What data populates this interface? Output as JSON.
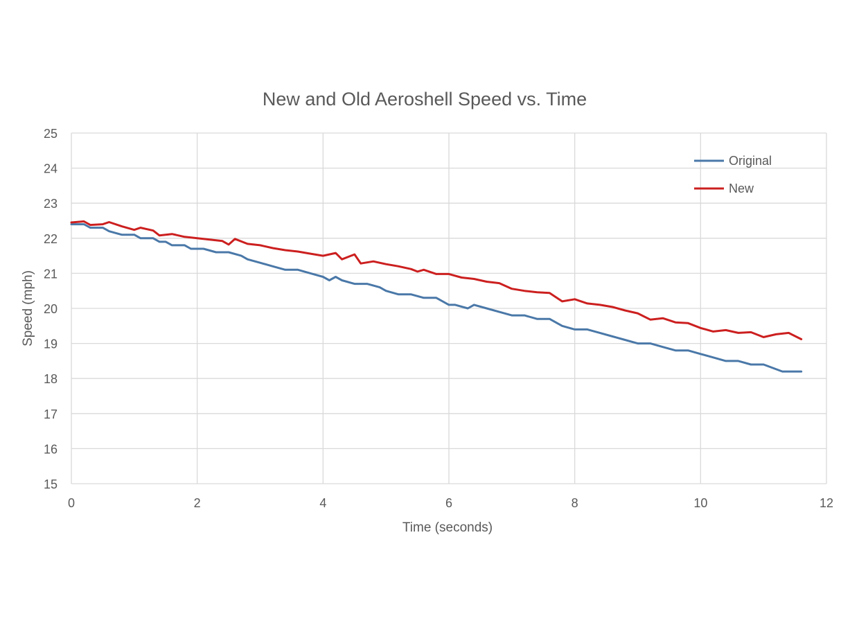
{
  "chart_data": {
    "type": "line",
    "title": "New and Old Aeroshell Speed vs. Time",
    "xlabel": "Time (seconds)",
    "ylabel": "Speed (mph)",
    "xlim": [
      0,
      12
    ],
    "ylim": [
      15,
      25
    ],
    "x_ticks": [
      0,
      2,
      4,
      6,
      8,
      10,
      12
    ],
    "y_ticks": [
      15,
      16,
      17,
      18,
      19,
      20,
      21,
      22,
      23,
      24,
      25
    ],
    "grid": true,
    "legend_position": "top-right",
    "series": [
      {
        "name": "Original",
        "color": "#4a78a8",
        "x": [
          0.0,
          0.2,
          0.3,
          0.5,
          0.6,
          0.8,
          1.0,
          1.1,
          1.3,
          1.4,
          1.5,
          1.6,
          1.8,
          1.9,
          2.1,
          2.3,
          2.5,
          2.7,
          2.8,
          3.0,
          3.2,
          3.4,
          3.6,
          3.8,
          4.0,
          4.1,
          4.2,
          4.3,
          4.5,
          4.7,
          4.9,
          5.0,
          5.2,
          5.4,
          5.6,
          5.8,
          6.0,
          6.1,
          6.3,
          6.4,
          6.6,
          6.8,
          7.0,
          7.2,
          7.4,
          7.6,
          7.8,
          8.0,
          8.2,
          8.4,
          8.6,
          8.8,
          9.0,
          9.2,
          9.4,
          9.6,
          9.8,
          10.0,
          10.2,
          10.4,
          10.6,
          10.8,
          11.0,
          11.3,
          11.6
        ],
        "values": [
          22.4,
          22.4,
          22.3,
          22.3,
          22.2,
          22.1,
          22.1,
          22.0,
          22.0,
          21.9,
          21.9,
          21.8,
          21.8,
          21.7,
          21.7,
          21.6,
          21.6,
          21.5,
          21.4,
          21.3,
          21.2,
          21.1,
          21.1,
          21.0,
          20.9,
          20.8,
          20.9,
          20.8,
          20.7,
          20.7,
          20.6,
          20.5,
          20.4,
          20.4,
          20.3,
          20.3,
          20.1,
          20.1,
          20.0,
          20.1,
          20.0,
          19.9,
          19.8,
          19.8,
          19.7,
          19.7,
          19.5,
          19.4,
          19.4,
          19.3,
          19.2,
          19.1,
          19.0,
          19.0,
          18.9,
          18.8,
          18.8,
          18.7,
          18.6,
          18.5,
          18.5,
          18.4,
          18.4,
          18.2,
          18.2
        ]
      },
      {
        "name": "New",
        "color": "#cc1f1f",
        "x": [
          0.0,
          0.2,
          0.3,
          0.5,
          0.6,
          0.8,
          1.0,
          1.1,
          1.3,
          1.4,
          1.6,
          1.8,
          2.0,
          2.2,
          2.4,
          2.5,
          2.6,
          2.8,
          3.0,
          3.2,
          3.4,
          3.6,
          3.8,
          4.0,
          4.2,
          4.3,
          4.5,
          4.6,
          4.8,
          5.0,
          5.2,
          5.4,
          5.5,
          5.6,
          5.8,
          6.0,
          6.2,
          6.4,
          6.6,
          6.8,
          7.0,
          7.2,
          7.4,
          7.6,
          7.8,
          8.0,
          8.2,
          8.4,
          8.6,
          8.8,
          9.0,
          9.2,
          9.4,
          9.6,
          9.8,
          10.0,
          10.2,
          10.4,
          10.6,
          10.8,
          11.0,
          11.2,
          11.4,
          11.6
        ],
        "values": [
          22.45,
          22.48,
          22.38,
          22.4,
          22.46,
          22.34,
          22.24,
          22.3,
          22.22,
          22.08,
          22.12,
          22.04,
          22.0,
          21.96,
          21.92,
          21.82,
          21.98,
          21.84,
          21.8,
          21.72,
          21.66,
          21.62,
          21.56,
          21.5,
          21.58,
          21.4,
          21.54,
          21.28,
          21.34,
          21.26,
          21.2,
          21.12,
          21.05,
          21.1,
          20.98,
          20.98,
          20.88,
          20.84,
          20.76,
          20.72,
          20.56,
          20.5,
          20.46,
          20.44,
          20.2,
          20.26,
          20.14,
          20.1,
          20.04,
          19.94,
          19.86,
          19.68,
          19.72,
          19.6,
          19.58,
          19.44,
          19.34,
          19.38,
          19.3,
          19.32,
          19.18,
          19.26,
          19.3,
          19.12
        ]
      }
    ]
  }
}
